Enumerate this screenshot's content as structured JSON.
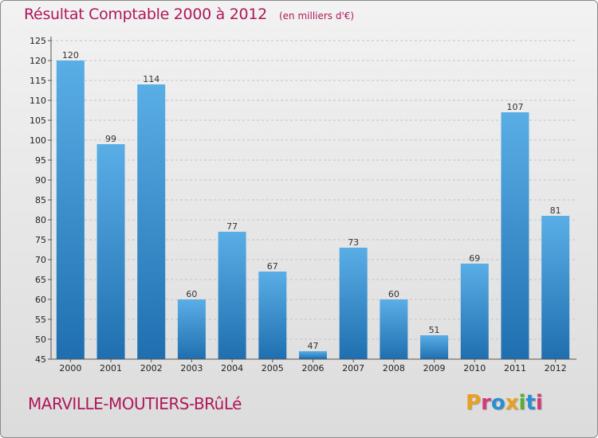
{
  "header": {
    "title": "Résultat Comptable 2000 à 2012",
    "unit": "(en milliers d'€)"
  },
  "footer": {
    "commune": "MARVILLE-MOUTIERS-BRûLé",
    "logo": "Proxiti"
  },
  "colors": {
    "title": "#b0175a",
    "bar_light": "#5aaee6",
    "bar_dark": "#1f6fb0",
    "logo_letters": [
      "#e8a020",
      "#d23a7a",
      "#2a8fd0",
      "#e8a020",
      "#55b030",
      "#2a8fd0",
      "#d23a7a"
    ]
  },
  "chart_data": {
    "type": "bar",
    "categories": [
      "2000",
      "2001",
      "2002",
      "2003",
      "2004",
      "2005",
      "2006",
      "2007",
      "2008",
      "2009",
      "2010",
      "2011",
      "2012"
    ],
    "values": [
      120,
      99,
      114,
      60,
      77,
      67,
      47,
      73,
      60,
      51,
      69,
      107,
      81
    ],
    "ylim": [
      45,
      125
    ],
    "yticks": [
      45,
      50,
      55,
      60,
      65,
      70,
      75,
      80,
      85,
      90,
      95,
      100,
      105,
      110,
      115,
      120,
      125
    ],
    "grid": true,
    "legend": "none"
  }
}
